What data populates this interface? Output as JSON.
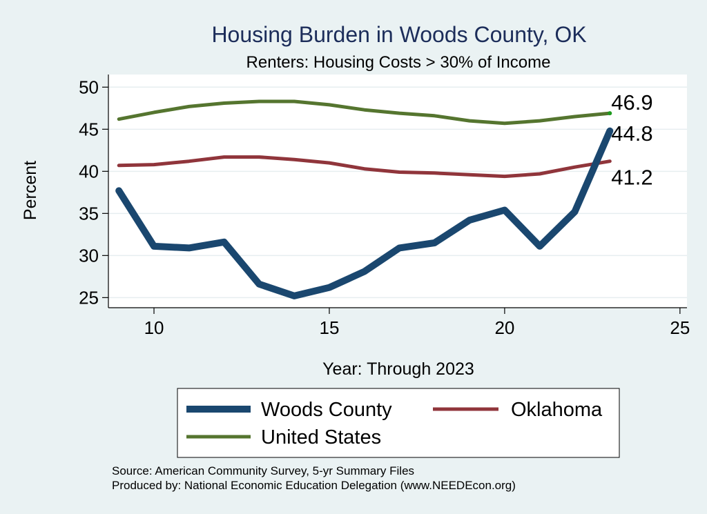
{
  "chart_data": {
    "type": "line",
    "title": "Housing Burden in Woods County, OK",
    "subtitle": "Renters: Housing Costs > 30% of Income",
    "xlabel": "Year: Through 2023",
    "ylabel": "Percent",
    "xlim": [
      8.7,
      25.2
    ],
    "ylim": [
      23.8,
      51.5
    ],
    "xticks": [
      10,
      15,
      20,
      25
    ],
    "yticks": [
      25,
      30,
      35,
      40,
      45,
      50
    ],
    "grid": true,
    "legend_position": "bottom",
    "x": [
      9,
      10,
      11,
      12,
      13,
      14,
      15,
      16,
      17,
      18,
      19,
      20,
      21,
      22,
      23
    ],
    "series": [
      {
        "name": "Woods County",
        "color": "#1a476f",
        "values": [
          37.7,
          31.1,
          30.9,
          31.6,
          26.6,
          25.2,
          26.2,
          28.1,
          30.9,
          31.5,
          34.2,
          35.4,
          31.1,
          35.2,
          44.8
        ],
        "end_label": "44.8"
      },
      {
        "name": "Oklahoma",
        "color": "#90353b",
        "values": [
          40.7,
          40.8,
          41.2,
          41.7,
          41.7,
          41.4,
          41.0,
          40.3,
          39.9,
          39.8,
          39.6,
          39.4,
          39.7,
          40.5,
          41.2
        ],
        "end_label": "41.2"
      },
      {
        "name": "United States",
        "color": "#55752f",
        "values": [
          46.2,
          47.0,
          47.7,
          48.1,
          48.3,
          48.3,
          47.9,
          47.3,
          46.9,
          46.6,
          46.0,
          45.7,
          46.0,
          46.5,
          46.9
        ],
        "end_label": "46.9"
      }
    ],
    "source_line1": "Source: American Community Survey, 5-yr Summary Files",
    "source_line2": "Produced by: National Economic Education Delegation (www.NEEDEcon.org)"
  }
}
